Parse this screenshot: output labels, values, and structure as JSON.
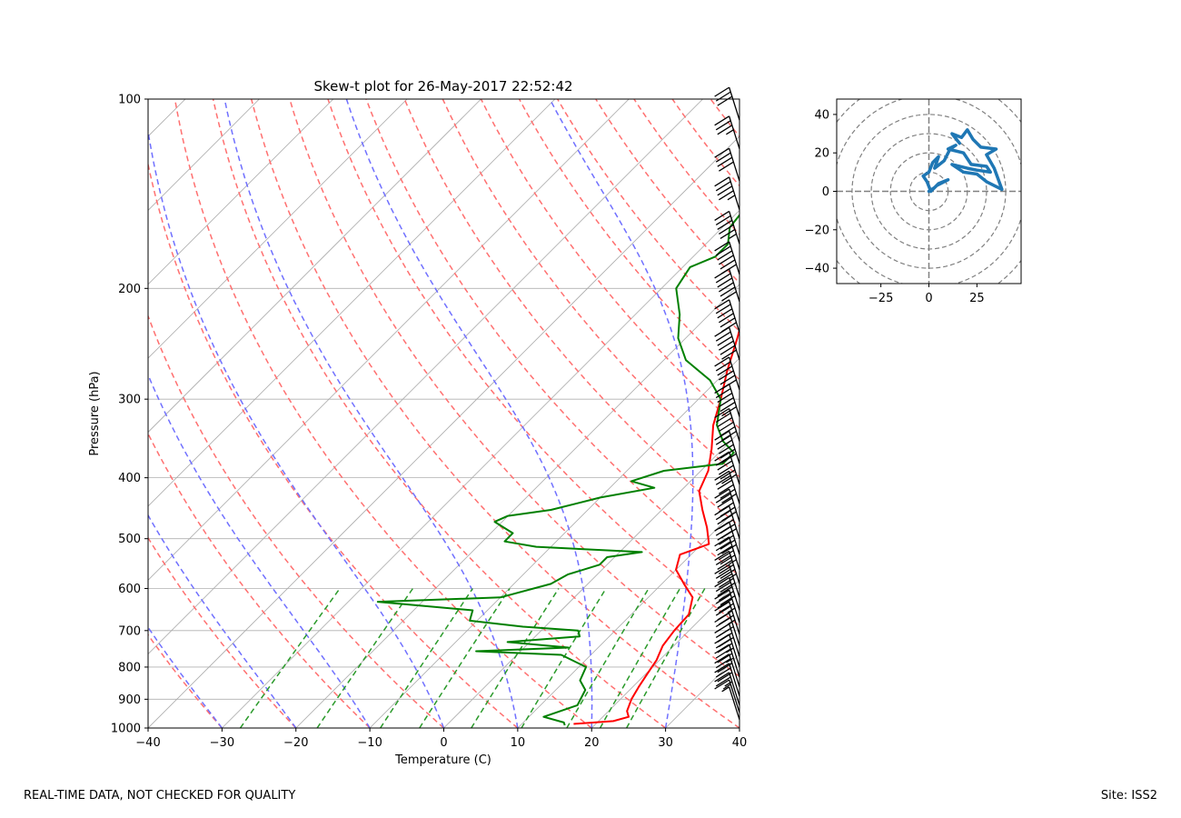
{
  "figure": {
    "footer_left": "REAL-TIME DATA, NOT CHECKED FOR QUALITY",
    "footer_right": "Site: ISS2"
  },
  "chart_data": [
    {
      "type": "line",
      "subtype": "skew-t log-p",
      "title": "Skew-t plot for 26-May-2017 22:52:42",
      "xlabel": "Temperature (C)",
      "ylabel": "Pressure (hPa)",
      "xlim": [
        -40,
        40
      ],
      "ylim": [
        1000,
        100
      ],
      "y_scale": "log",
      "x_ticks": [
        -40,
        -30,
        -20,
        -10,
        0,
        10,
        20,
        30,
        40
      ],
      "y_ticks": [
        1000,
        900,
        800,
        700,
        600,
        500,
        400,
        300,
        200,
        100
      ],
      "grid": true,
      "colors": {
        "temperature": "#ff0000",
        "dewpoint": "#008000",
        "dry_adiabats": "#ff7070",
        "moist_adiabats": "#7070ff",
        "mixing_ratio": "#2a9a2a",
        "isotherms": "#aaaaaa",
        "barbs": "#000000"
      },
      "series": [
        {
          "key": "temperature",
          "units": [
            "hPa",
            "C"
          ],
          "points": [
            [
              985,
              17
            ],
            [
              975,
              22
            ],
            [
              960,
              23.5
            ],
            [
              940,
              22.5
            ],
            [
              900,
              21.5
            ],
            [
              860,
              20.8
            ],
            [
              820,
              20.2
            ],
            [
              780,
              19.6
            ],
            [
              740,
              18.5
            ],
            [
              700,
              18
            ],
            [
              660,
              17.8
            ],
            [
              620,
              16
            ],
            [
              590,
              13
            ],
            [
              560,
              10
            ],
            [
              530,
              8.5
            ],
            [
              510,
              11
            ],
            [
              480,
              8.5
            ],
            [
              450,
              5.5
            ],
            [
              420,
              2.5
            ],
            [
              390,
              1
            ],
            [
              360,
              -1.5
            ],
            [
              330,
              -4.5
            ],
            [
              300,
              -7
            ],
            [
              270,
              -10
            ],
            [
              240,
              -13
            ],
            [
              215,
              -16
            ],
            [
              200,
              -19
            ],
            [
              185,
              -21
            ],
            [
              180,
              -18
            ],
            [
              178,
              -13
            ],
            [
              170,
              -8
            ],
            [
              160,
              -3
            ],
            [
              150,
              -4
            ],
            [
              145,
              -1
            ],
            [
              130,
              1
            ],
            [
              120,
              3
            ],
            [
              112,
              1.5
            ],
            [
              105,
              2
            ],
            [
              100,
              5
            ]
          ]
        },
        {
          "key": "dewpoint",
          "units": [
            "hPa",
            "C"
          ],
          "points": [
            [
              990,
              16
            ],
            [
              980,
              15.5
            ],
            [
              960,
              12
            ],
            [
              920,
              15
            ],
            [
              870,
              14
            ],
            [
              840,
              12
            ],
            [
              800,
              11
            ],
            [
              765,
              6
            ],
            [
              755,
              -6
            ],
            [
              745,
              6
            ],
            [
              730,
              -3
            ],
            [
              715,
              6
            ],
            [
              700,
              5
            ],
            [
              690,
              -3
            ],
            [
              675,
              -11
            ],
            [
              650,
              -12
            ],
            [
              630,
              -26
            ],
            [
              620,
              -10
            ],
            [
              590,
              -5
            ],
            [
              570,
              -4
            ],
            [
              550,
              -1
            ],
            [
              535,
              -1
            ],
            [
              525,
              3
            ],
            [
              515,
              -12
            ],
            [
              505,
              -17
            ],
            [
              490,
              -17
            ],
            [
              470,
              -21
            ],
            [
              460,
              -20
            ],
            [
              450,
              -15
            ],
            [
              430,
              -10
            ],
            [
              415,
              -4
            ],
            [
              405,
              -8
            ],
            [
              390,
              -5
            ],
            [
              380,
              2
            ],
            [
              365,
              2
            ],
            [
              350,
              -1
            ],
            [
              330,
              -4
            ],
            [
              300,
              -7
            ],
            [
              280,
              -11
            ],
            [
              260,
              -17
            ],
            [
              240,
              -21
            ],
            [
              220,
              -24
            ],
            [
              200,
              -28
            ],
            [
              185,
              -29
            ],
            [
              178,
              -27
            ],
            [
              170,
              -27
            ],
            [
              160,
              -29
            ],
            [
              150,
              -29.5
            ],
            [
              140,
              -29
            ],
            [
              130,
              -30
            ],
            [
              120,
              -35
            ],
            [
              110,
              -36
            ],
            [
              105,
              -38
            ],
            [
              100,
              -37
            ]
          ]
        }
      ],
      "wind_barbs": {
        "units": [
          "hPa",
          "kt"
        ],
        "barbs": [
          [
            970,
            5
          ],
          [
            945,
            15
          ],
          [
            920,
            25
          ],
          [
            890,
            30
          ],
          [
            860,
            30
          ],
          [
            830,
            35
          ],
          [
            800,
            35
          ],
          [
            770,
            40
          ],
          [
            740,
            40
          ],
          [
            710,
            45
          ],
          [
            680,
            45
          ],
          [
            650,
            50
          ],
          [
            620,
            50
          ],
          [
            590,
            55
          ],
          [
            560,
            55
          ],
          [
            530,
            60
          ],
          [
            500,
            60
          ],
          [
            470,
            60
          ],
          [
            440,
            60
          ],
          [
            410,
            60
          ],
          [
            380,
            60
          ],
          [
            350,
            60
          ],
          [
            320,
            60
          ],
          [
            290,
            60
          ],
          [
            260,
            60
          ],
          [
            235,
            60
          ],
          [
            210,
            60
          ],
          [
            190,
            60
          ],
          [
            170,
            55
          ],
          [
            150,
            45
          ],
          [
            135,
            40
          ],
          [
            120,
            35
          ],
          [
            108,
            30
          ]
        ]
      }
    },
    {
      "type": "line",
      "subtype": "hodograph",
      "xlim": [
        -48,
        48
      ],
      "ylim": [
        -48,
        48
      ],
      "x_ticks": [
        -25,
        0,
        25
      ],
      "y_ticks": [
        -40,
        -20,
        0,
        20,
        40
      ],
      "ring_spacing": 10,
      "line_color": "#1f77b4",
      "points": [
        [
          0,
          0
        ],
        [
          3,
          2
        ],
        [
          5,
          4
        ],
        [
          10,
          6
        ],
        [
          4,
          3
        ],
        [
          1,
          0
        ],
        [
          -1,
          5
        ],
        [
          -3,
          8
        ],
        [
          0,
          10
        ],
        [
          2,
          15
        ],
        [
          5,
          18
        ],
        [
          3,
          12
        ],
        [
          8,
          16
        ],
        [
          11,
          22
        ],
        [
          14,
          24
        ],
        [
          10,
          22
        ],
        [
          18,
          20
        ],
        [
          22,
          14
        ],
        [
          30,
          13
        ],
        [
          32,
          10
        ],
        [
          25,
          11
        ],
        [
          20,
          12
        ],
        [
          12,
          14
        ],
        [
          18,
          10
        ],
        [
          25,
          9
        ],
        [
          30,
          5
        ],
        [
          38,
          1
        ],
        [
          34,
          12
        ],
        [
          30,
          19
        ],
        [
          35,
          22
        ],
        [
          27,
          23
        ],
        [
          23,
          27
        ],
        [
          20,
          32
        ],
        [
          17,
          28
        ],
        [
          12,
          30
        ],
        [
          16,
          25
        ]
      ]
    }
  ]
}
